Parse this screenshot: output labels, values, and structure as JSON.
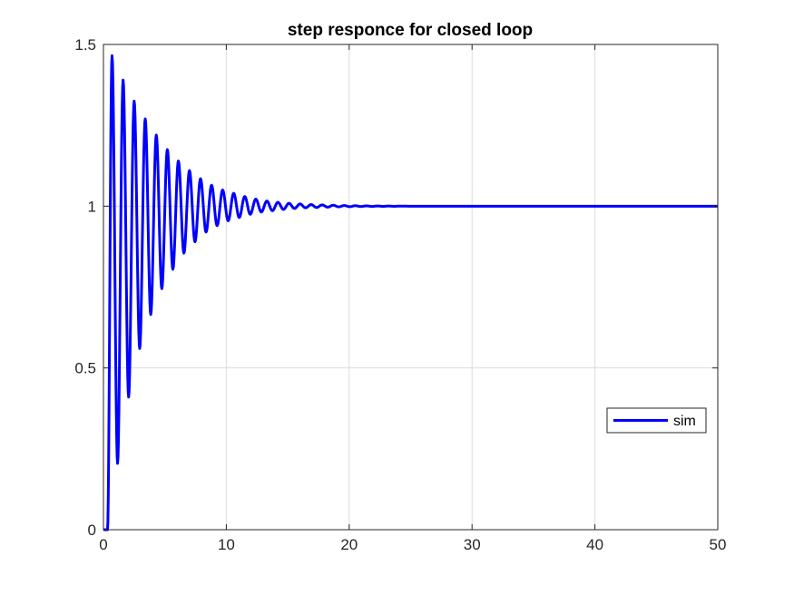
{
  "chart_data": {
    "type": "line",
    "title": "step responce for closed loop",
    "xlabel": "",
    "ylabel": "",
    "xlim": [
      0,
      50
    ],
    "ylim": [
      0,
      1.5
    ],
    "x_ticks": [
      0,
      10,
      20,
      30,
      40,
      50
    ],
    "y_ticks": [
      0,
      0.5,
      1,
      1.5
    ],
    "x_tick_labels": [
      "0",
      "10",
      "20",
      "30",
      "40",
      "50"
    ],
    "y_tick_labels": [
      "0",
      "0.5",
      "1",
      "1.5"
    ],
    "grid": true,
    "legend": {
      "entries": [
        "sim"
      ],
      "placement": "right"
    },
    "colors": {
      "series": "#0000ff",
      "grid": "#dcdcdc",
      "axes": "#262626"
    },
    "series": [
      {
        "name": "sim",
        "x": [
          0,
          0.33,
          0.7,
          1.15,
          1.6,
          2.05,
          2.5,
          2.95,
          3.4,
          3.85,
          4.3,
          4.75,
          5.2,
          5.65,
          6.1,
          6.55,
          7.0,
          7.45,
          7.9,
          8.35,
          8.8,
          9.25,
          9.7,
          10.15,
          10.6,
          11.05,
          11.5,
          11.95,
          12.4,
          12.85,
          13.3,
          13.75,
          14.2,
          14.65,
          15.1,
          15.55,
          16.0,
          16.45,
          16.9,
          17.35,
          17.8,
          18.25,
          18.7,
          19.15,
          19.6,
          20.05,
          20.5,
          20.95,
          21.4,
          21.85,
          22.3,
          22.75,
          23.2,
          23.65,
          24.1,
          25,
          26,
          28,
          30,
          35,
          40,
          45,
          50
        ],
        "values": [
          0,
          0,
          1.465,
          0.205,
          1.39,
          0.41,
          1.325,
          0.56,
          1.27,
          0.665,
          1.22,
          0.745,
          1.175,
          0.805,
          1.14,
          0.855,
          1.11,
          0.89,
          1.085,
          0.92,
          1.065,
          0.94,
          1.05,
          0.955,
          1.04,
          0.965,
          1.03,
          0.975,
          1.022,
          0.982,
          1.016,
          0.986,
          1.012,
          0.99,
          1.009,
          0.993,
          1.007,
          0.995,
          1.005,
          0.996,
          1.004,
          0.997,
          1.003,
          0.998,
          1.002,
          0.9985,
          1.0015,
          0.999,
          1.001,
          0.9993,
          1.0007,
          0.9995,
          1.0005,
          0.9997,
          1.0003,
          1.0,
          1.0,
          1.0,
          1.0,
          1.0,
          1.0,
          1.0,
          1.0
        ]
      }
    ]
  }
}
